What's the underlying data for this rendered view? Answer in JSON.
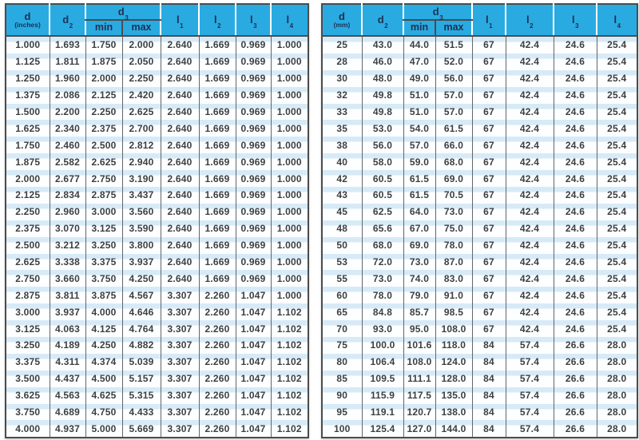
{
  "colors": {
    "header_bg": "#29abe2",
    "header_text": "#1f2f50",
    "stripe": "#d7eaf7",
    "grid": "#646567",
    "border": "#4b4c4e",
    "body_text": "#3d3e40"
  },
  "tables": [
    {
      "name": "imperial-thread-dimensions",
      "header": {
        "d": {
          "base": "d",
          "unit": "(inches)"
        },
        "d2": {
          "base": "d",
          "sub": "2"
        },
        "d3": {
          "base": "d",
          "sub": "3"
        },
        "min": "min",
        "max": "max",
        "l1": {
          "base": "l",
          "sub": "1"
        },
        "l2": {
          "base": "l",
          "sub": "2"
        },
        "l3": {
          "base": "l",
          "sub": "3"
        },
        "l4": {
          "base": "l",
          "sub": "4"
        }
      },
      "rows": [
        [
          "1.000",
          "1.693",
          "1.750",
          "2.000",
          "2.640",
          "1.669",
          "0.969",
          "1.000"
        ],
        [
          "1.125",
          "1.811",
          "1.875",
          "2.050",
          "2.640",
          "1.669",
          "0.969",
          "1.000"
        ],
        [
          "1.250",
          "1.960",
          "2.000",
          "2.250",
          "2.640",
          "1.669",
          "0.969",
          "1.000"
        ],
        [
          "1.375",
          "2.086",
          "2.125",
          "2.420",
          "2.640",
          "1.669",
          "0.969",
          "1.000"
        ],
        [
          "1.500",
          "2.200",
          "2.250",
          "2.625",
          "2.640",
          "1.669",
          "0.969",
          "1.000"
        ],
        [
          "1.625",
          "2.340",
          "2.375",
          "2.700",
          "2.640",
          "1.669",
          "0.969",
          "1.000"
        ],
        [
          "1.750",
          "2.460",
          "2.500",
          "2.812",
          "2.640",
          "1.669",
          "0.969",
          "1.000"
        ],
        [
          "1.875",
          "2.582",
          "2.625",
          "2.940",
          "2.640",
          "1.669",
          "0.969",
          "1.000"
        ],
        [
          "2.000",
          "2.677",
          "2.750",
          "3.190",
          "2.640",
          "1.669",
          "0.969",
          "1.000"
        ],
        [
          "2.125",
          "2.834",
          "2.875",
          "3.437",
          "2.640",
          "1.669",
          "0.969",
          "1.000"
        ],
        [
          "2.250",
          "2.960",
          "3.000",
          "3.560",
          "2.640",
          "1.669",
          "0.969",
          "1.000"
        ],
        [
          "2.375",
          "3.070",
          "3.125",
          "3.590",
          "2.640",
          "1.669",
          "0.969",
          "1.000"
        ],
        [
          "2.500",
          "3.212",
          "3.250",
          "3.800",
          "2.640",
          "1.669",
          "0.969",
          "1.000"
        ],
        [
          "2.625",
          "3.338",
          "3.375",
          "3.937",
          "2.640",
          "1.669",
          "0.969",
          "1.000"
        ],
        [
          "2.750",
          "3.660",
          "3.750",
          "4.250",
          "2.640",
          "1.669",
          "0.969",
          "1.000"
        ],
        [
          "2.875",
          "3.811",
          "3.875",
          "4.567",
          "3.307",
          "2.260",
          "1.047",
          "1.000"
        ],
        [
          "3.000",
          "3.937",
          "4.000",
          "4.646",
          "3.307",
          "2.260",
          "1.047",
          "1.102"
        ],
        [
          "3.125",
          "4.063",
          "4.125",
          "4.764",
          "3.307",
          "2.260",
          "1.047",
          "1.102"
        ],
        [
          "3.250",
          "4.189",
          "4.250",
          "4.882",
          "3.307",
          "2.260",
          "1.047",
          "1.102"
        ],
        [
          "3.375",
          "4.311",
          "4.374",
          "5.039",
          "3.307",
          "2.260",
          "1.047",
          "1.102"
        ],
        [
          "3.500",
          "4.437",
          "4.500",
          "5.157",
          "3.307",
          "2.260",
          "1.047",
          "1.102"
        ],
        [
          "3.625",
          "4.563",
          "4.625",
          "5.315",
          "3.307",
          "2.260",
          "1.047",
          "1.102"
        ],
        [
          "3.750",
          "4.689",
          "4.750",
          "4.433",
          "3.307",
          "2.260",
          "1.047",
          "1.102"
        ],
        [
          "4.000",
          "4.937",
          "5.000",
          "5.669",
          "3.307",
          "2.260",
          "1.047",
          "1.102"
        ]
      ]
    },
    {
      "name": "metric-thread-dimensions",
      "header": {
        "d": {
          "base": "d",
          "unit": "(mm)"
        },
        "d2": {
          "base": "d",
          "sub": "2"
        },
        "d3": {
          "base": "d",
          "sub": "3"
        },
        "min": "min",
        "max": "max",
        "l1": {
          "base": "l",
          "sub": "1"
        },
        "l2": {
          "base": "l",
          "sub": "2"
        },
        "l3": {
          "base": "l",
          "sub": "3"
        },
        "l4": {
          "base": "l",
          "sub": "4"
        }
      },
      "rows": [
        [
          "25",
          "43.0",
          "44.0",
          "51.5",
          "67",
          "42.4",
          "24.6",
          "25.4"
        ],
        [
          "28",
          "46.0",
          "47.0",
          "52.0",
          "67",
          "42.4",
          "24.6",
          "25.4"
        ],
        [
          "30",
          "48.0",
          "49.0",
          "56.0",
          "67",
          "42.4",
          "24.6",
          "25.4"
        ],
        [
          "32",
          "49.8",
          "51.0",
          "57.0",
          "67",
          "42.4",
          "24.6",
          "25.4"
        ],
        [
          "33",
          "49.8",
          "51.0",
          "57.0",
          "67",
          "42.4",
          "24.6",
          "25.4"
        ],
        [
          "35",
          "53.0",
          "54.0",
          "61.5",
          "67",
          "42.4",
          "24.6",
          "25.4"
        ],
        [
          "38",
          "56.0",
          "57.0",
          "66.0",
          "67",
          "42.4",
          "24.6",
          "25.4"
        ],
        [
          "40",
          "58.0",
          "59.0",
          "68.0",
          "67",
          "42.4",
          "24.6",
          "25.4"
        ],
        [
          "42",
          "60.5",
          "61.5",
          "69.0",
          "67",
          "42.4",
          "24.6",
          "25.4"
        ],
        [
          "43",
          "60.5",
          "61.5",
          "70.5",
          "67",
          "42.4",
          "24.6",
          "25.4"
        ],
        [
          "45",
          "62.5",
          "64.0",
          "73.0",
          "67",
          "42.4",
          "24.6",
          "25.4"
        ],
        [
          "48",
          "65.6",
          "67.0",
          "75.0",
          "67",
          "42.4",
          "24.6",
          "25.4"
        ],
        [
          "50",
          "68.0",
          "69.0",
          "78.0",
          "67",
          "42.4",
          "24.6",
          "25.4"
        ],
        [
          "53",
          "72.0",
          "73.0",
          "87.0",
          "67",
          "42.4",
          "24.6",
          "25.4"
        ],
        [
          "55",
          "73.0",
          "74.0",
          "83.0",
          "67",
          "42.4",
          "24.6",
          "25.4"
        ],
        [
          "60",
          "78.0",
          "79.0",
          "91.0",
          "67",
          "42.4",
          "24.6",
          "25.4"
        ],
        [
          "65",
          "84.8",
          "85.7",
          "98.5",
          "67",
          "42.4",
          "24.6",
          "25.4"
        ],
        [
          "70",
          "93.0",
          "95.0",
          "108.0",
          "67",
          "42.4",
          "24.6",
          "25.4"
        ],
        [
          "75",
          "100.0",
          "101.6",
          "118.0",
          "84",
          "57.4",
          "26.6",
          "28.0"
        ],
        [
          "80",
          "106.4",
          "108.0",
          "124.0",
          "84",
          "57.4",
          "26.6",
          "28.0"
        ],
        [
          "85",
          "109.5",
          "111.1",
          "128.0",
          "84",
          "57.4",
          "26.6",
          "28.0"
        ],
        [
          "90",
          "115.9",
          "117.5",
          "135.0",
          "84",
          "57.4",
          "26.6",
          "28.0"
        ],
        [
          "95",
          "119.1",
          "120.7",
          "138.0",
          "84",
          "57.4",
          "26.6",
          "28.0"
        ],
        [
          "100",
          "125.4",
          "127.0",
          "144.0",
          "84",
          "57.4",
          "26.6",
          "28.0"
        ]
      ]
    }
  ]
}
